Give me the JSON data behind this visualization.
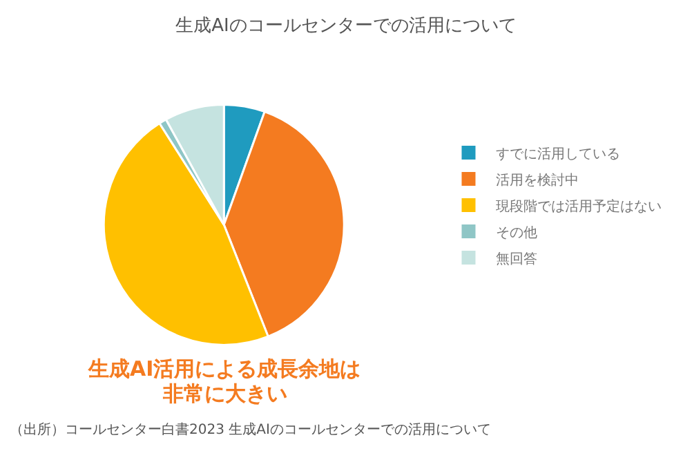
{
  "chart_data": {
    "type": "pie",
    "title": "生成AIのコールセンターでの活用について",
    "categories": [
      "すでに活用している",
      "活用を検討中",
      "現段階では活用予定はない",
      "その他",
      "無回答"
    ],
    "values": [
      5.5,
      38.5,
      47,
      1,
      8
    ],
    "colors": [
      "#1f9bbf",
      "#f47b20",
      "#ffc000",
      "#8fc6c6",
      "#c5e3e0"
    ],
    "legend": "right",
    "annotations": [
      "生成AI活用による成長余地は",
      "非常に大きい",
      "（出所）コールセンター白書2023 生成AIのコールセンターでの活用について"
    ]
  }
}
